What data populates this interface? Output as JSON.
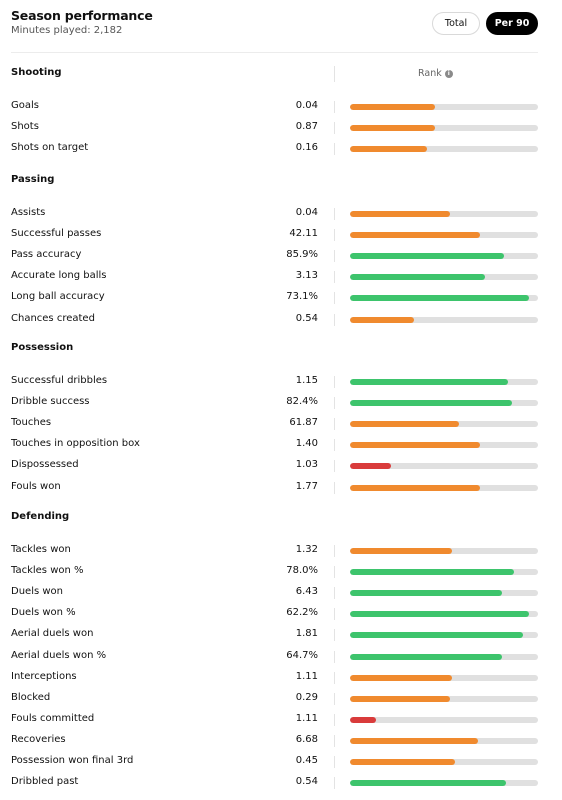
{
  "header": {
    "title": "Season performance",
    "subtitle": "Minutes played: 2,182"
  },
  "toggles": {
    "total": "Total",
    "per90": "Per 90",
    "selected": "per90"
  },
  "rank_label": "Rank",
  "colors": {
    "orange": "#f08a2e",
    "green": "#3dc46c",
    "red": "#d93b3b",
    "track": "#e0e0e0"
  },
  "sections": [
    {
      "title": "Shooting",
      "stats": [
        {
          "label": "Goals",
          "value": "0.04",
          "rank": 0.45,
          "color": "orange"
        },
        {
          "label": "Shots",
          "value": "0.87",
          "rank": 0.45,
          "color": "orange"
        },
        {
          "label": "Shots on target",
          "value": "0.16",
          "rank": 0.41,
          "color": "orange"
        }
      ]
    },
    {
      "title": "Passing",
      "stats": [
        {
          "label": "Assists",
          "value": "0.04",
          "rank": 0.53,
          "color": "orange"
        },
        {
          "label": "Successful passes",
          "value": "42.11",
          "rank": 0.69,
          "color": "orange"
        },
        {
          "label": "Pass accuracy",
          "value": "85.9%",
          "rank": 0.82,
          "color": "green"
        },
        {
          "label": "Accurate long balls",
          "value": "3.13",
          "rank": 0.72,
          "color": "green"
        },
        {
          "label": "Long ball accuracy",
          "value": "73.1%",
          "rank": 0.95,
          "color": "green"
        },
        {
          "label": "Chances created",
          "value": "0.54",
          "rank": 0.34,
          "color": "orange"
        }
      ]
    },
    {
      "title": "Possession",
      "stats": [
        {
          "label": "Successful dribbles",
          "value": "1.15",
          "rank": 0.84,
          "color": "green"
        },
        {
          "label": "Dribble success",
          "value": "82.4%",
          "rank": 0.86,
          "color": "green"
        },
        {
          "label": "Touches",
          "value": "61.87",
          "rank": 0.58,
          "color": "orange"
        },
        {
          "label": "Touches in opposition box",
          "value": "1.40",
          "rank": 0.69,
          "color": "orange"
        },
        {
          "label": "Dispossessed",
          "value": "1.03",
          "rank": 0.22,
          "color": "red"
        },
        {
          "label": "Fouls won",
          "value": "1.77",
          "rank": 0.69,
          "color": "orange"
        }
      ]
    },
    {
      "title": "Defending",
      "stats": [
        {
          "label": "Tackles won",
          "value": "1.32",
          "rank": 0.54,
          "color": "orange"
        },
        {
          "label": "Tackles won %",
          "value": "78.0%",
          "rank": 0.87,
          "color": "green"
        },
        {
          "label": "Duels won",
          "value": "6.43",
          "rank": 0.81,
          "color": "green"
        },
        {
          "label": "Duels won %",
          "value": "62.2%",
          "rank": 0.95,
          "color": "green"
        },
        {
          "label": "Aerial duels won",
          "value": "1.81",
          "rank": 0.92,
          "color": "green"
        },
        {
          "label": "Aerial duels won %",
          "value": "64.7%",
          "rank": 0.81,
          "color": "green"
        },
        {
          "label": "Interceptions",
          "value": "1.11",
          "rank": 0.54,
          "color": "orange"
        },
        {
          "label": "Blocked",
          "value": "0.29",
          "rank": 0.53,
          "color": "orange"
        },
        {
          "label": "Fouls committed",
          "value": "1.11",
          "rank": 0.14,
          "color": "red"
        },
        {
          "label": "Recoveries",
          "value": "6.68",
          "rank": 0.68,
          "color": "orange"
        },
        {
          "label": "Possession won final 3rd",
          "value": "0.45",
          "rank": 0.56,
          "color": "orange"
        },
        {
          "label": "Dribbled past",
          "value": "0.54",
          "rank": 0.83,
          "color": "green"
        }
      ]
    }
  ]
}
